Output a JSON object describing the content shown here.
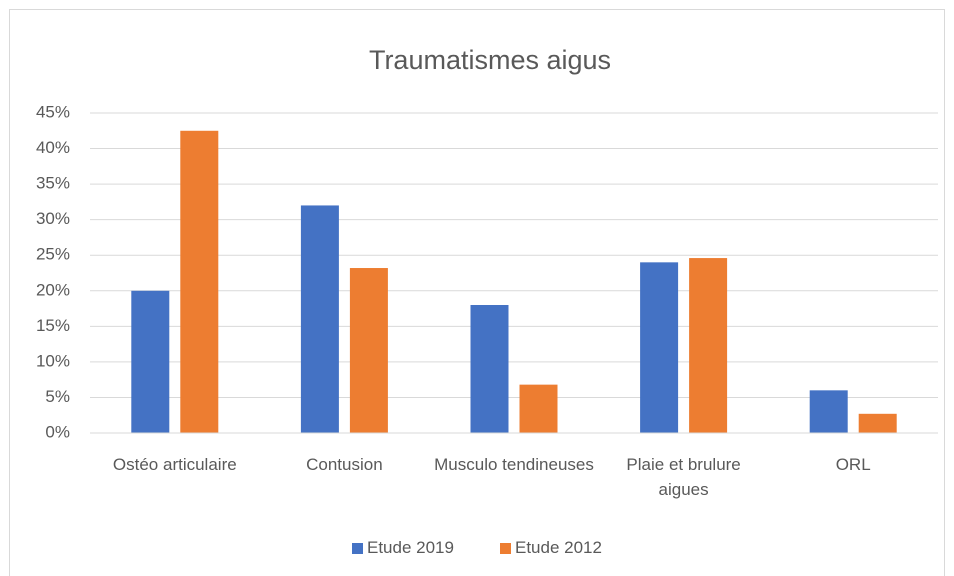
{
  "chart_data": {
    "type": "bar",
    "title": "Traumatismes aigus",
    "categories": [
      "Ostéo articulaire",
      "Contusion",
      "Musculo tendineuses",
      "Plaie et brulure aigues",
      "ORL"
    ],
    "series": [
      {
        "name": "Etude 2019",
        "color": "#4472c4",
        "values": [
          20,
          32,
          18,
          24,
          6
        ]
      },
      {
        "name": "Etude 2012",
        "color": "#ed7d31",
        "values": [
          42.5,
          23.2,
          6.8,
          24.6,
          2.7
        ]
      }
    ],
    "ylim": [
      0,
      45
    ],
    "yticks": [
      {
        "value": 0,
        "label": "0%"
      },
      {
        "value": 5,
        "label": "5%"
      },
      {
        "value": 10,
        "label": "10%"
      },
      {
        "value": 15,
        "label": "15%"
      },
      {
        "value": 20,
        "label": "20%"
      },
      {
        "value": 25,
        "label": "25%"
      },
      {
        "value": 30,
        "label": "30%"
      },
      {
        "value": 35,
        "label": "35%"
      },
      {
        "value": 40,
        "label": "40%"
      },
      {
        "value": 45,
        "label": "45%"
      }
    ],
    "grid": true,
    "legend": "bottom"
  }
}
